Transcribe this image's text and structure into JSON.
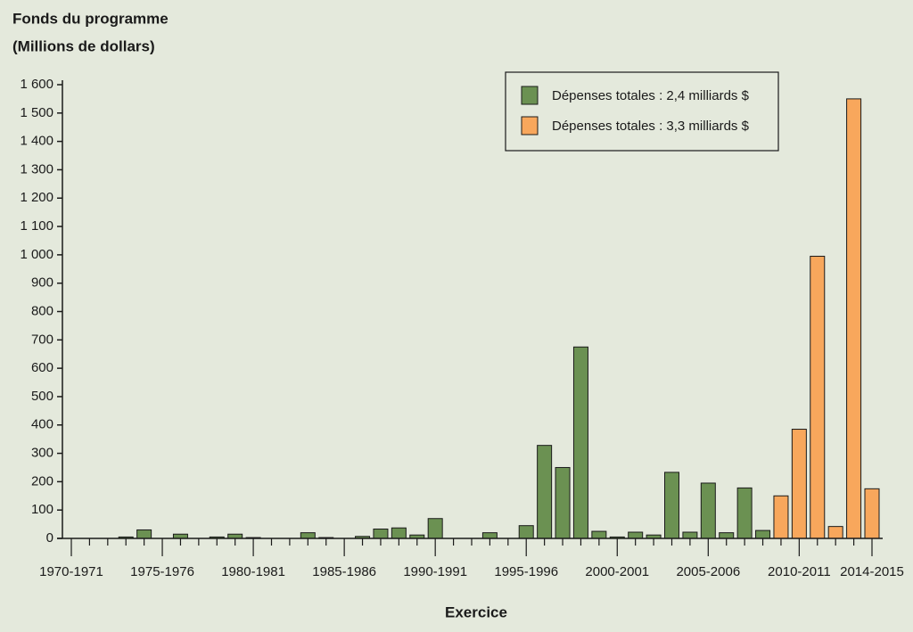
{
  "chart_data": {
    "type": "bar",
    "ylabel": [
      "Fonds du programme",
      "(Millions de dollars)"
    ],
    "xlabel": "Exercice",
    "categories": [
      "1970-1971",
      null,
      null,
      null,
      null,
      "1975-1976",
      null,
      null,
      null,
      null,
      "1980-1981",
      null,
      null,
      null,
      null,
      "1985-1986",
      null,
      null,
      null,
      null,
      "1990-1991",
      null,
      null,
      null,
      null,
      "1995-1996",
      null,
      null,
      null,
      null,
      "2000-2001",
      null,
      null,
      null,
      null,
      "2005-2006",
      null,
      null,
      null,
      null,
      "2010-2011",
      null,
      null,
      null,
      "2014-2015"
    ],
    "series": [
      {
        "name": "Dépenses totales : 2,4 milliards $",
        "color": "#6b9152",
        "values": [
          0,
          0,
          0,
          5,
          30,
          0,
          15,
          0,
          5,
          15,
          3,
          0,
          0,
          20,
          3,
          0,
          7,
          33,
          37,
          12,
          70,
          0,
          0,
          20,
          0,
          45,
          328,
          250,
          675,
          25,
          5,
          22,
          12,
          233,
          22,
          195,
          20,
          178,
          28,
          null,
          null,
          null,
          null,
          null,
          null
        ]
      },
      {
        "name": "Dépenses totales : 3,3 milliards $",
        "color": "#f8a75c",
        "values": [
          null,
          null,
          null,
          null,
          null,
          null,
          null,
          null,
          null,
          null,
          null,
          null,
          null,
          null,
          null,
          null,
          null,
          null,
          null,
          null,
          null,
          null,
          null,
          null,
          null,
          null,
          null,
          null,
          null,
          null,
          null,
          null,
          null,
          null,
          null,
          null,
          null,
          null,
          null,
          150,
          385,
          995,
          42,
          1550,
          175
        ]
      }
    ],
    "ylim": [
      0,
      1600
    ],
    "yticks": [
      0,
      100,
      200,
      300,
      400,
      500,
      600,
      700,
      800,
      900,
      {
        "value": 1000,
        "label": "1 000"
      },
      {
        "value": 1100,
        "label": "1 100"
      },
      {
        "value": 1200,
        "label": "1 200"
      },
      {
        "value": 1300,
        "label": "1 300"
      },
      {
        "value": 1400,
        "label": "1 400"
      },
      {
        "value": 1500,
        "label": "1 500"
      },
      {
        "value": 1600,
        "label": "1 600"
      }
    ],
    "legend": "top-right"
  }
}
